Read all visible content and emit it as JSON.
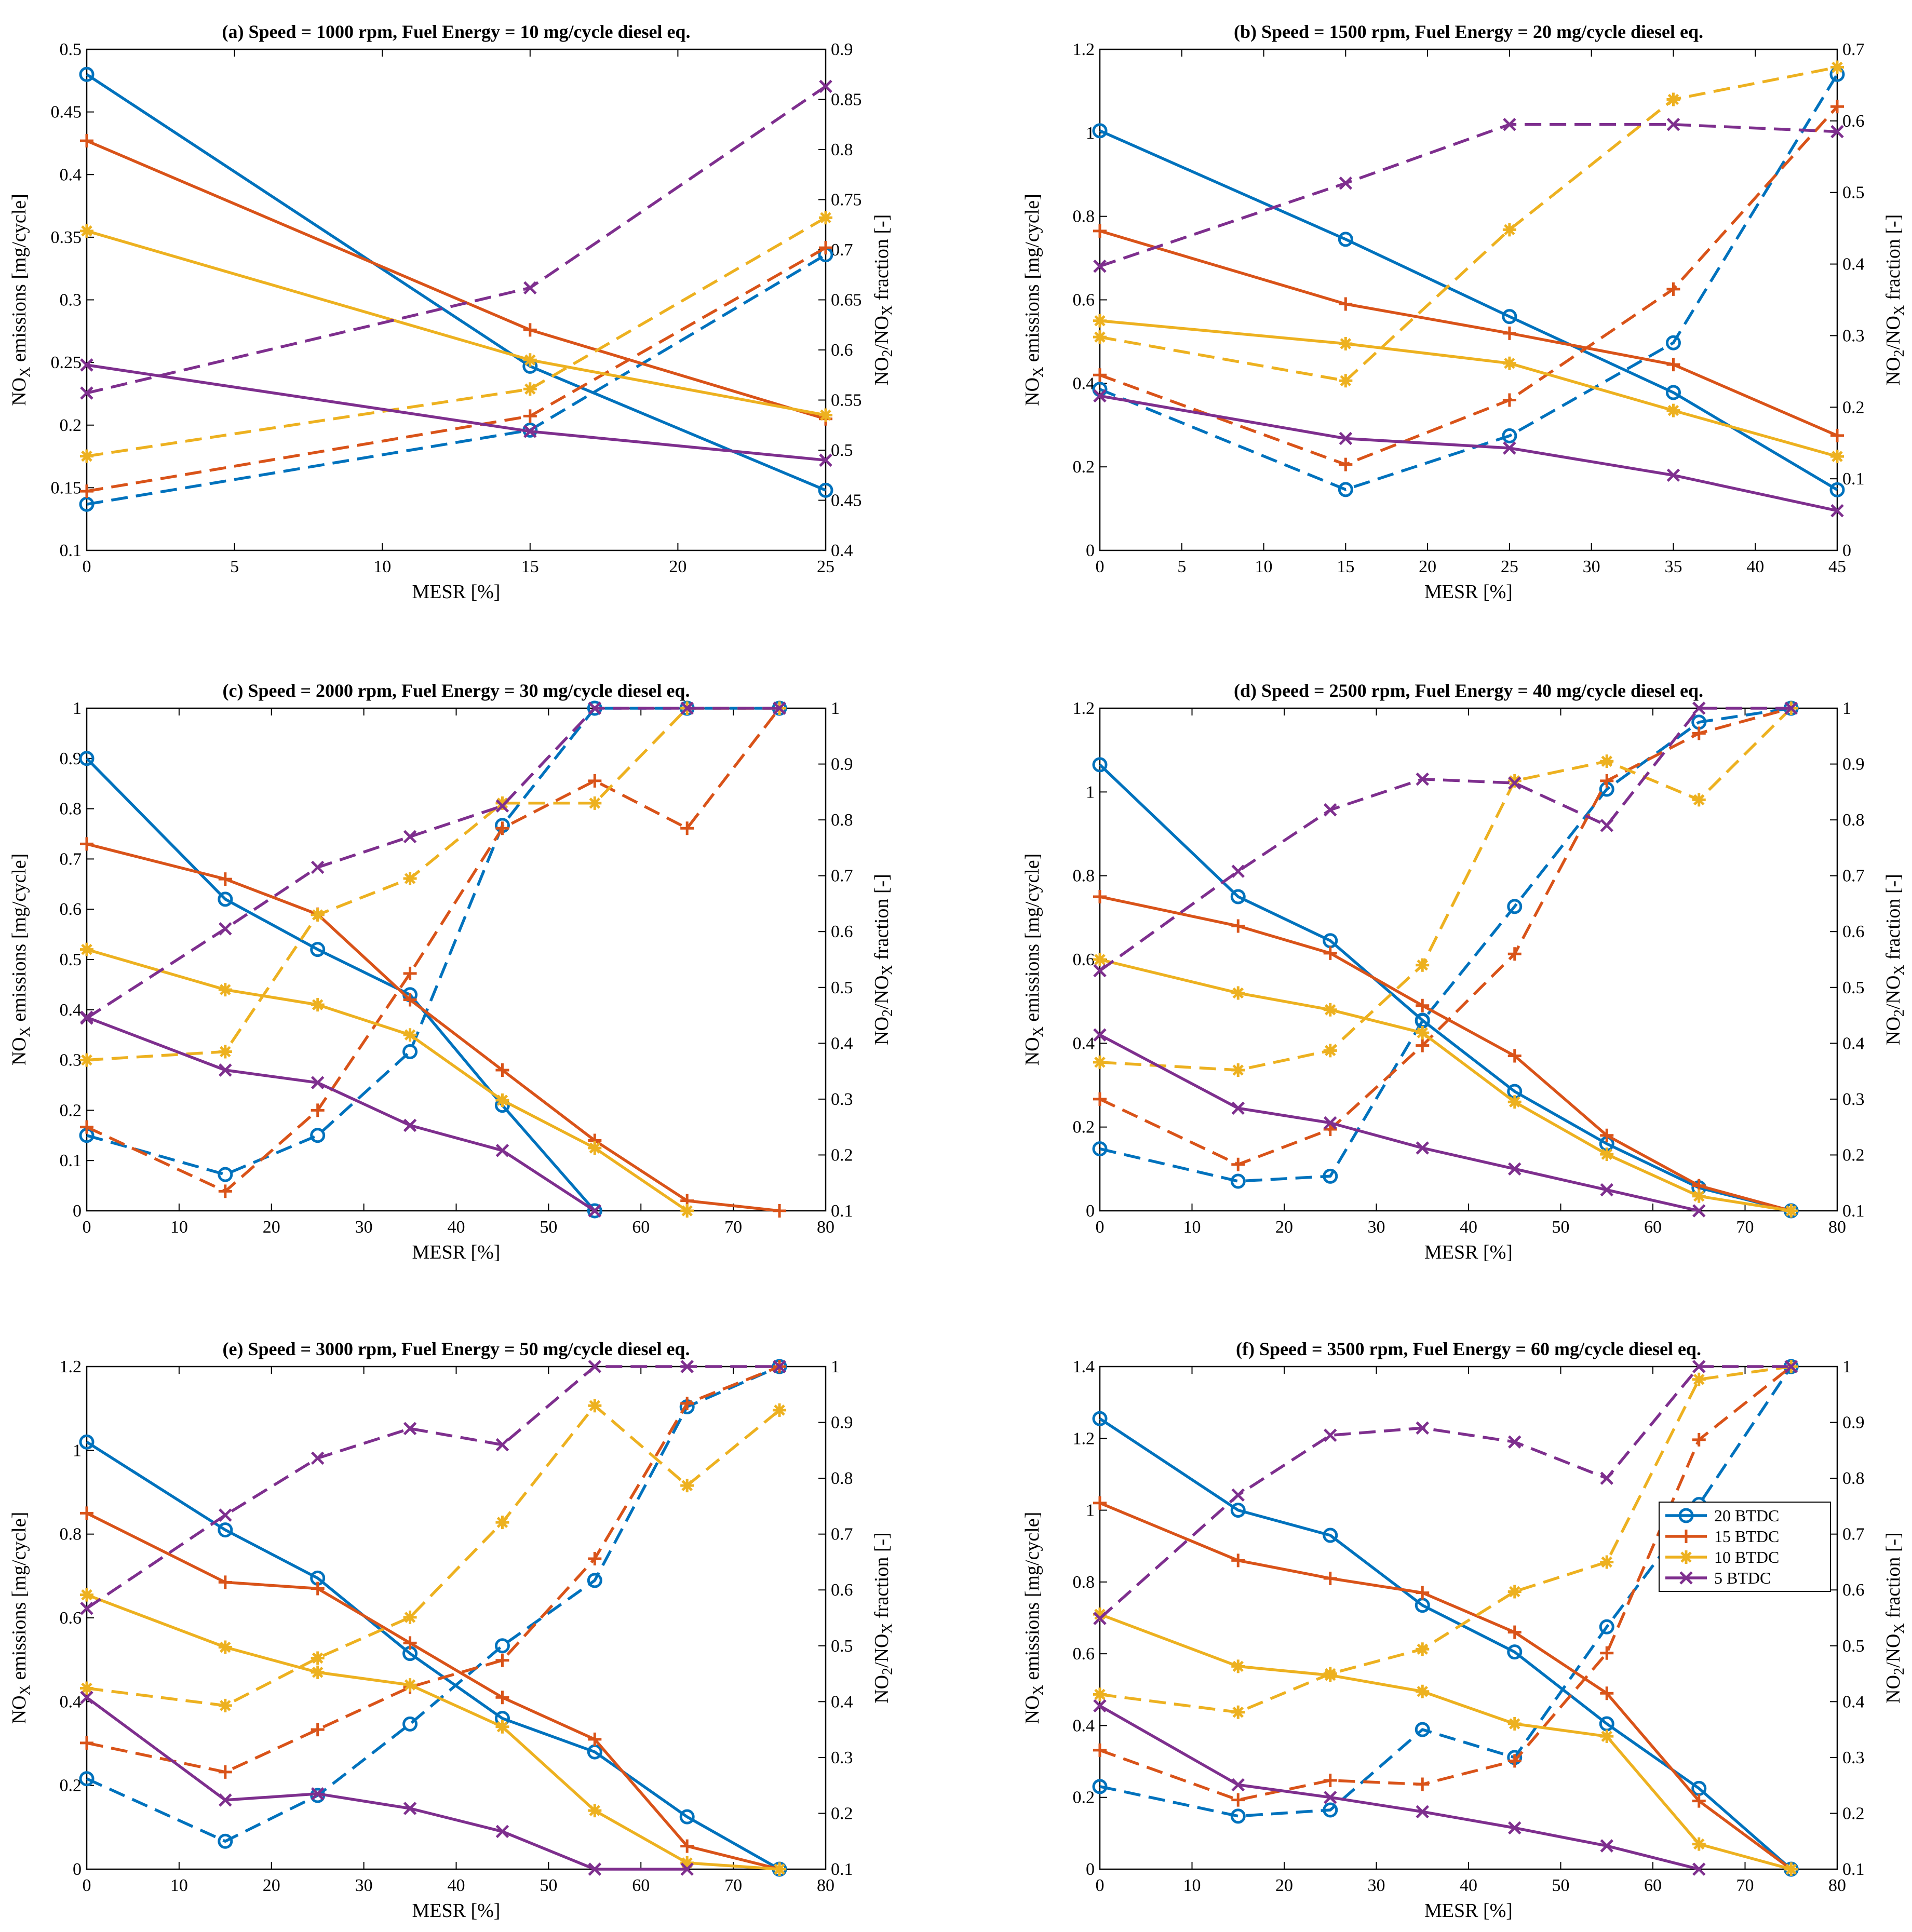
{
  "figure": {
    "legend_location": "right, lower-middle of panel f",
    "series_styles": [
      {
        "key": "20",
        "label": "20 BTDC",
        "color": "#0072BD",
        "marker": "circle"
      },
      {
        "key": "15",
        "label": "15 BTDC",
        "color": "#D95319",
        "marker": "plus"
      },
      {
        "key": "10",
        "label": "10 BTDC",
        "color": "#EDB120",
        "marker": "asterisk"
      },
      {
        "key": "5",
        "label": "5 BTDC",
        "color": "#7E2F8E",
        "marker": "x"
      }
    ],
    "line_styles": {
      "nox": "solid (left axis)",
      "ratio": "dashed (right axis)"
    }
  },
  "chart_data": [
    {
      "type": "line",
      "title": "(a) Speed = 1000 rpm, Fuel Energy = 10 mg/cycle diesel eq.",
      "xlabel": "MESR [%]",
      "ylabel": [
        "NO",
        "X",
        " emissions [mg/cycle]"
      ],
      "y2label": [
        "NO",
        "2",
        "/NO",
        "X",
        " fraction [-]"
      ],
      "xlim": [
        0,
        25
      ],
      "xticks": [
        0,
        5,
        10,
        15,
        20,
        25
      ],
      "ylim": [
        0.1,
        0.5
      ],
      "yticks": [
        0.1,
        0.15,
        0.2,
        0.25,
        0.3,
        0.35,
        0.4,
        0.45,
        0.5
      ],
      "y2lim": [
        0.4,
        0.9
      ],
      "y2ticks": [
        0.4,
        0.45,
        0.5,
        0.55,
        0.6,
        0.65,
        0.7,
        0.75,
        0.8,
        0.85,
        0.9
      ],
      "x": [
        0,
        15,
        25
      ],
      "nox": {
        "20": [
          0.48,
          0.247,
          0.148
        ],
        "15": [
          0.427,
          0.276,
          0.205
        ],
        "10": [
          0.355,
          0.252,
          0.208
        ],
        "5": [
          0.248,
          0.195,
          0.172
        ]
      },
      "ratio": {
        "20": [
          0.446,
          0.52,
          0.695
        ],
        "15": [
          0.459,
          0.534,
          0.702
        ],
        "10": [
          0.494,
          0.561,
          0.732
        ],
        "5": [
          0.557,
          0.662,
          0.863
        ]
      }
    },
    {
      "type": "line",
      "title": "(b) Speed = 1500 rpm, Fuel Energy = 20 mg/cycle diesel eq.",
      "xlabel": "MESR [%]",
      "ylabel": [
        "NO",
        "X",
        " emissions [mg/cycle]"
      ],
      "y2label": [
        "NO",
        "2",
        "/NO",
        "X",
        " fraction [-]"
      ],
      "xlim": [
        0,
        45
      ],
      "xticks": [
        0,
        5,
        10,
        15,
        20,
        25,
        30,
        35,
        40,
        45
      ],
      "ylim": [
        0,
        1.2
      ],
      "yticks": [
        0,
        0.2,
        0.4,
        0.6,
        0.8,
        1,
        1.2
      ],
      "y2lim": [
        0,
        0.7
      ],
      "y2ticks": [
        0,
        0.1,
        0.2,
        0.3,
        0.4,
        0.5,
        0.6,
        0.7
      ],
      "x": [
        0,
        15,
        25,
        35,
        45
      ],
      "nox": {
        "20": [
          1.005,
          0.745,
          0.56,
          0.378,
          0.145
        ],
        "15": [
          0.765,
          0.59,
          0.52,
          0.445,
          0.275
        ],
        "10": [
          0.55,
          0.495,
          0.448,
          0.335,
          0.225
        ],
        "5": [
          0.37,
          0.268,
          0.245,
          0.18,
          0.095
        ]
      },
      "ratio": {
        "20": [
          0.225,
          0.085,
          0.16,
          0.29,
          0.665
        ],
        "15": [
          0.245,
          0.12,
          0.21,
          0.365,
          0.62
        ],
        "10": [
          0.298,
          0.237,
          0.448,
          0.63,
          0.675
        ],
        "5": [
          0.397,
          0.513,
          0.595,
          0.595,
          0.585
        ]
      }
    },
    {
      "type": "line",
      "title": "(c) Speed = 2000 rpm, Fuel Energy = 30 mg/cycle diesel eq.",
      "xlabel": "MESR [%]",
      "ylabel": [
        "NO",
        "X",
        " emissions [mg/cycle]"
      ],
      "y2label": [
        "NO",
        "2",
        "/NO",
        "X",
        " fraction [-]"
      ],
      "xlim": [
        0,
        80
      ],
      "xticks": [
        0,
        10,
        20,
        30,
        40,
        50,
        60,
        70,
        80
      ],
      "ylim": [
        0,
        1
      ],
      "yticks": [
        0,
        0.1,
        0.2,
        0.3,
        0.4,
        0.5,
        0.6,
        0.7,
        0.8,
        0.9,
        1
      ],
      "y2lim": [
        0.1,
        1
      ],
      "y2ticks": [
        0.1,
        0.2,
        0.3,
        0.4,
        0.5,
        0.6,
        0.7,
        0.8,
        0.9,
        1
      ],
      "x": [
        0,
        15,
        25,
        35,
        45,
        55,
        65,
        75
      ],
      "nox": {
        "20": [
          0.9,
          0.62,
          0.52,
          0.43,
          0.21,
          0,
          null,
          null
        ],
        "15": [
          0.73,
          0.66,
          0.59,
          0.42,
          0.28,
          0.14,
          0.02,
          0
        ],
        "10": [
          0.52,
          0.44,
          0.41,
          0.35,
          0.22,
          0.125,
          0,
          null
        ],
        "5": [
          0.385,
          0.28,
          0.255,
          0.17,
          0.12,
          0,
          null,
          null
        ]
      },
      "ratio": {
        "20": [
          0.235,
          0.165,
          0.235,
          0.385,
          0.79,
          1,
          1,
          1
        ],
        "15": [
          0.25,
          0.135,
          0.28,
          0.525,
          0.785,
          0.87,
          0.785,
          1
        ],
        "10": [
          0.37,
          0.385,
          0.63,
          0.695,
          0.83,
          0.83,
          1,
          1
        ],
        "5": [
          0.445,
          0.605,
          0.715,
          0.77,
          0.825,
          1,
          1,
          1
        ]
      }
    },
    {
      "type": "line",
      "title": "(d) Speed = 2500 rpm, Fuel Energy = 40 mg/cycle diesel eq.",
      "xlabel": "MESR [%]",
      "ylabel": [
        "NO",
        "X",
        " emissions [mg/cycle]"
      ],
      "y2label": [
        "NO",
        "2",
        "/NO",
        "X",
        " fraction [-]"
      ],
      "xlim": [
        0,
        80
      ],
      "xticks": [
        0,
        10,
        20,
        30,
        40,
        50,
        60,
        70,
        80
      ],
      "ylim": [
        0,
        1.2
      ],
      "yticks": [
        0,
        0.2,
        0.4,
        0.6,
        0.8,
        1,
        1.2
      ],
      "y2lim": [
        0.1,
        1
      ],
      "y2ticks": [
        0.1,
        0.2,
        0.3,
        0.4,
        0.5,
        0.6,
        0.7,
        0.8,
        0.9,
        1
      ],
      "x": [
        0,
        15,
        25,
        35,
        45,
        55,
        65,
        75
      ],
      "nox": {
        "20": [
          1.065,
          0.75,
          0.645,
          0.455,
          0.285,
          0.16,
          0.055,
          0
        ],
        "15": [
          0.75,
          0.68,
          0.615,
          0.49,
          0.37,
          0.18,
          0.06,
          0
        ],
        "10": [
          0.6,
          0.52,
          0.48,
          0.425,
          0.26,
          0.135,
          0.035,
          0
        ],
        "5": [
          0.42,
          0.245,
          0.21,
          0.15,
          0.1,
          0.05,
          0,
          null
        ]
      },
      "ratio": {
        "20": [
          0.211,
          0.153,
          0.162,
          0.44,
          0.645,
          0.855,
          0.975,
          1
        ],
        "15": [
          0.3,
          0.183,
          0.246,
          0.396,
          0.56,
          0.87,
          0.955,
          1
        ],
        "10": [
          0.366,
          0.352,
          0.387,
          0.54,
          0.87,
          0.905,
          0.836,
          1
        ],
        "5": [
          0.53,
          0.708,
          0.818,
          0.873,
          0.866,
          0.79,
          1,
          1
        ]
      }
    },
    {
      "type": "line",
      "title": "(e) Speed = 3000 rpm, Fuel Energy = 50 mg/cycle diesel eq.",
      "xlabel": "MESR [%]",
      "ylabel": [
        "NO",
        "X",
        " emissions [mg/cycle]"
      ],
      "y2label": [
        "NO",
        "2",
        "/NO",
        "X",
        " fraction [-]"
      ],
      "xlim": [
        0,
        80
      ],
      "xticks": [
        0,
        10,
        20,
        30,
        40,
        50,
        60,
        70,
        80
      ],
      "ylim": [
        0,
        1.2
      ],
      "yticks": [
        0,
        0.2,
        0.4,
        0.6,
        0.8,
        1,
        1.2
      ],
      "y2lim": [
        0.1,
        1
      ],
      "y2ticks": [
        0.1,
        0.2,
        0.3,
        0.4,
        0.5,
        0.6,
        0.7,
        0.8,
        0.9,
        1
      ],
      "x": [
        0,
        15,
        25,
        35,
        45,
        55,
        65,
        75
      ],
      "nox": {
        "20": [
          1.02,
          0.81,
          0.695,
          0.515,
          0.36,
          0.28,
          0.125,
          0
        ],
        "15": [
          0.85,
          0.685,
          0.67,
          0.54,
          0.41,
          0.31,
          0.055,
          0
        ],
        "10": [
          0.655,
          0.53,
          0.47,
          0.44,
          0.34,
          0.14,
          0.015,
          0
        ],
        "5": [
          0.41,
          0.165,
          0.18,
          0.145,
          0.09,
          0,
          0,
          null
        ]
      },
      "ratio": {
        "20": [
          0.262,
          0.15,
          0.232,
          0.36,
          0.5,
          0.617,
          0.928,
          1
        ],
        "15": [
          0.326,
          0.274,
          0.35,
          0.426,
          0.474,
          0.656,
          0.934,
          1
        ],
        "10": [
          0.424,
          0.393,
          0.478,
          0.551,
          0.721,
          0.93,
          0.787,
          0.922
        ],
        "5": [
          0.567,
          0.734,
          0.836,
          0.889,
          0.86,
          1,
          1,
          1
        ]
      }
    },
    {
      "type": "line",
      "title": "(f) Speed = 3500 rpm, Fuel Energy = 60 mg/cycle diesel eq.",
      "xlabel": "MESR [%]",
      "ylabel": [
        "NO",
        "X",
        " emissions [mg/cycle]"
      ],
      "y2label": [
        "NO",
        "2",
        "/NO",
        "X",
        " fraction [-]"
      ],
      "xlim": [
        0,
        80
      ],
      "xticks": [
        0,
        10,
        20,
        30,
        40,
        50,
        60,
        70,
        80
      ],
      "ylim": [
        0,
        1.4
      ],
      "yticks": [
        0,
        0.2,
        0.4,
        0.6,
        0.8,
        1,
        1.2,
        1.4
      ],
      "y2lim": [
        0.1,
        1
      ],
      "y2ticks": [
        0.1,
        0.2,
        0.3,
        0.4,
        0.5,
        0.6,
        0.7,
        0.8,
        0.9,
        1
      ],
      "x": [
        0,
        15,
        25,
        35,
        45,
        55,
        65,
        75
      ],
      "nox": {
        "20": [
          1.255,
          1.0,
          0.93,
          0.735,
          0.605,
          0.405,
          0.225,
          0
        ],
        "15": [
          1.02,
          0.86,
          0.81,
          0.77,
          0.66,
          0.49,
          0.19,
          0
        ],
        "10": [
          0.71,
          0.565,
          0.54,
          0.495,
          0.405,
          0.37,
          0.07,
          0
        ],
        "5": [
          0.455,
          0.235,
          0.2,
          0.16,
          0.115,
          0.065,
          0,
          null
        ]
      },
      "ratio": {
        "20": [
          0.248,
          0.195,
          0.206,
          0.35,
          0.3,
          0.534,
          0.753,
          1
        ],
        "15": [
          0.313,
          0.224,
          0.259,
          0.252,
          0.294,
          0.487,
          0.869,
          1
        ],
        "10": [
          0.413,
          0.381,
          0.45,
          0.494,
          0.597,
          0.65,
          0.977,
          1
        ],
        "5": [
          0.549,
          0.77,
          0.877,
          0.89,
          0.865,
          0.8,
          1,
          1
        ]
      }
    }
  ]
}
